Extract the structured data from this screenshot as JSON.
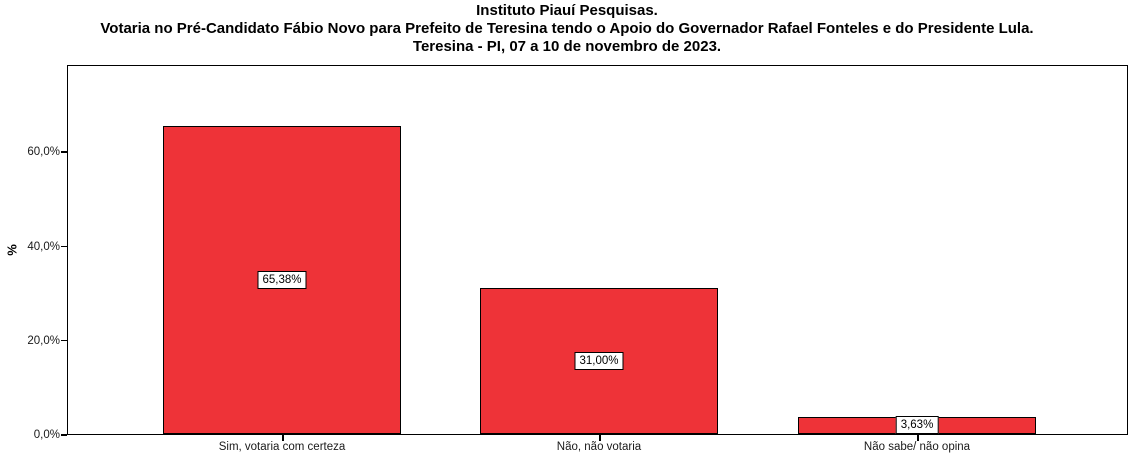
{
  "title": {
    "line1": "Instituto Piauí Pesquisas.",
    "line2": "Votaria no Pré-Candidato Fábio Novo para Prefeito de Teresina tendo o Apoio do Governador Rafael Fonteles e do Presidente Lula.",
    "line3": "Teresina - PI, 07 a 10 de novembro de 2023."
  },
  "chart_data": {
    "type": "bar",
    "title": "Instituto Piauí Pesquisas. Votaria no Pré-Candidato Fábio Novo para Prefeito de Teresina tendo o Apoio do Governador Rafael Fonteles e do Presidente Lula. Teresina - PI, 07 a 10 de novembro de 2023.",
    "categories": [
      "Sim, votaria com certeza",
      "Não, não votaria",
      "Não sabe/ não opina"
    ],
    "values": [
      65.38,
      31.0,
      3.63
    ],
    "value_labels": [
      "65,38%",
      "31,00%",
      "3,63%"
    ],
    "xlabel": "",
    "ylabel": "%",
    "y_tick_labels": [
      "0,0%",
      "20,0%",
      "40,0%",
      "60,0%"
    ],
    "y_tick_values": [
      0,
      20,
      40,
      60
    ],
    "ylim": [
      0,
      78.5
    ],
    "grid": false,
    "legend": "none",
    "bar_color": "#EE3338",
    "bar_border_color": "#000000",
    "frame_color": "#000000",
    "background_color": "#FFFFFF"
  }
}
